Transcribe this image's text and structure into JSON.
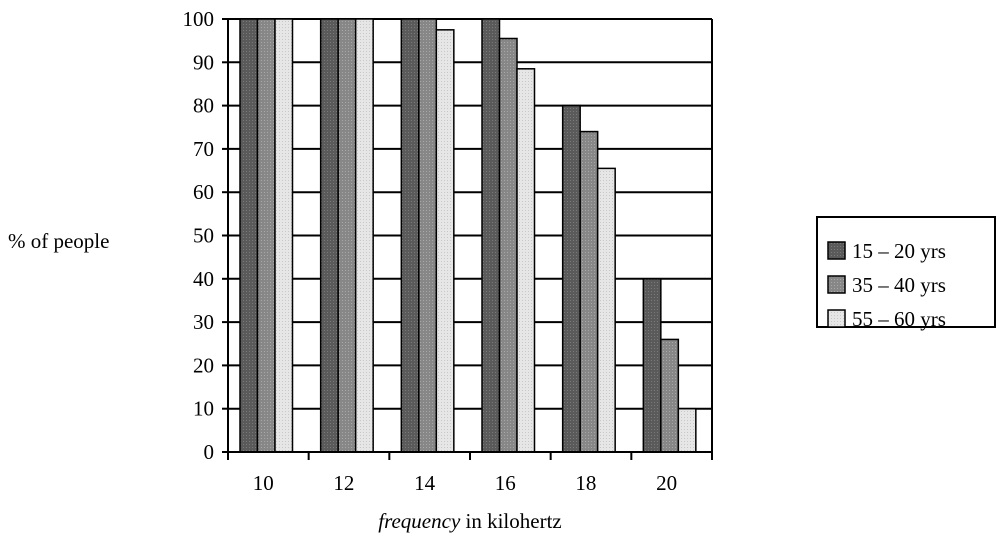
{
  "chart_data": {
    "type": "bar",
    "title": "",
    "ylabel": "% of people",
    "xlabel_italic": "frequency",
    "xlabel_rest": " in kilohertz",
    "categories": [
      "10",
      "12",
      "14",
      "16",
      "18",
      "20"
    ],
    "series": [
      {
        "name": "15 – 20 yrs",
        "values": [
          100,
          100,
          100,
          100,
          80,
          40
        ],
        "color": "#606060"
      },
      {
        "name": "35 – 40 yrs",
        "values": [
          100,
          100,
          100,
          95.5,
          74,
          26
        ],
        "color": "#8a8a8a"
      },
      {
        "name": "55 – 60 yrs",
        "values": [
          100,
          100,
          97.5,
          88.5,
          65.5,
          10
        ],
        "color": "#e4e4e4"
      }
    ],
    "ylim": [
      0,
      100
    ],
    "yticks": [
      0,
      10,
      20,
      30,
      40,
      50,
      60,
      70,
      80,
      90,
      100
    ],
    "grid": true,
    "legend_position": "right"
  }
}
